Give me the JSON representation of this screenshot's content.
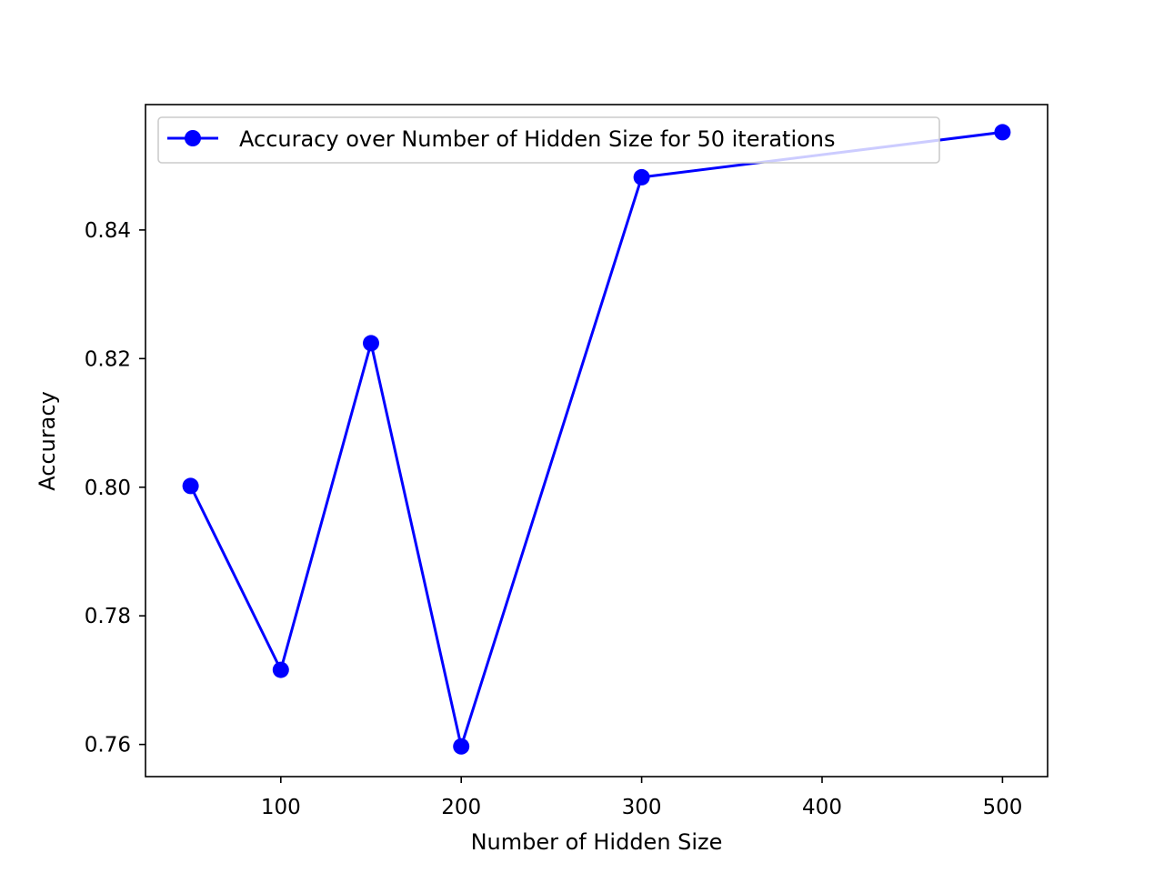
{
  "chart_data": {
    "type": "line",
    "title": "",
    "xlabel": "Number of Hidden Size",
    "ylabel": "Accuracy",
    "xlim": [
      25,
      525
    ],
    "ylim": [
      0.755,
      0.8595
    ],
    "xticks": [
      100,
      200,
      300,
      400,
      500
    ],
    "xtick_labels": [
      "100",
      "200",
      "300",
      "400",
      "500"
    ],
    "yticks": [
      0.76,
      0.78,
      0.8,
      0.82,
      0.84
    ],
    "ytick_labels": [
      "0.76",
      "0.78",
      "0.80",
      "0.82",
      "0.84"
    ],
    "grid": false,
    "legend_position": "top-left",
    "series": [
      {
        "name": "Accuracy over Number of Hidden Size for 50 iterations",
        "color": "#0000ff",
        "marker": "circle",
        "x": [
          50,
          100,
          150,
          200,
          300,
          500
        ],
        "y": [
          0.8002,
          0.7716,
          0.8224,
          0.7597,
          0.8482,
          0.8552
        ]
      }
    ]
  }
}
